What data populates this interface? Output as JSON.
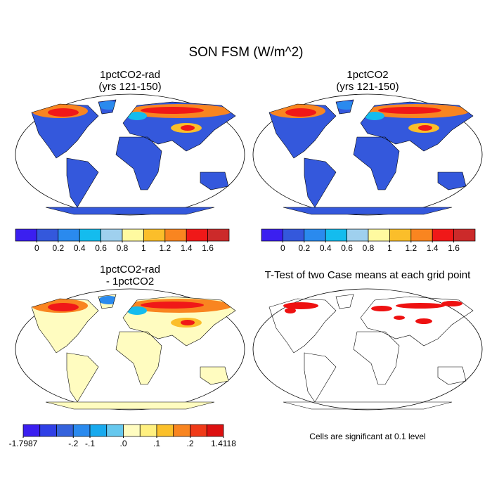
{
  "title": "SON FSM (W/m^2)",
  "panels": [
    {
      "title": [
        "1pctCO2-rad",
        "(yrs 121-150)"
      ]
    },
    {
      "title": [
        "1pctCO2",
        "(yrs 121-150)"
      ]
    },
    {
      "title": [
        "1pctCO2-rad",
        "- 1pctCO2"
      ]
    },
    {
      "title": [
        "T-Test of two Case means at each grid point"
      ],
      "note": "Cells are significant at 0.1 level"
    }
  ],
  "colorbars": [
    {
      "colors": [
        "#3b1ff0",
        "#3458dc",
        "#2a8aee",
        "#14bcee",
        "#9fd0ee",
        "#fffaa0",
        "#fbbe2a",
        "#f98520",
        "#f01818",
        "#cc2a2a"
      ],
      "ticks": [
        null,
        0,
        0.2,
        0.4,
        0.6,
        0.8,
        1,
        1.2,
        1.4,
        1.6,
        null
      ]
    },
    {
      "colors": [
        "#3b1ff0",
        "#3458dc",
        "#2a8aee",
        "#14bcee",
        "#9fd0ee",
        "#fffaa0",
        "#fbbe2a",
        "#f98520",
        "#f01818",
        "#cc2a2a"
      ],
      "ticks": [
        null,
        0,
        0.2,
        0.4,
        0.6,
        0.8,
        1,
        1.2,
        1.4,
        1.6,
        null
      ]
    },
    {
      "colors": [
        "#3b1ff0",
        "#2f3fe6",
        "#3462dc",
        "#2a8aee",
        "#18aaee",
        "#66c8ee",
        "#fffcc0",
        "#fff080",
        "#fbc02a",
        "#f98520",
        "#f03a18",
        "#dd1010"
      ],
      "ticks": [
        -1.7987,
        null,
        null,
        {
          "value": -0.2,
          "label": "-.2"
        },
        {
          "value": -0.1,
          "label": "-.1"
        },
        null,
        {
          "value": 0.0,
          "label": ".0"
        },
        null,
        {
          "value": 0.1,
          "label": ".1"
        },
        null,
        {
          "value": 0.2,
          "label": ".2"
        },
        null,
        1.4118
      ]
    }
  ]
}
